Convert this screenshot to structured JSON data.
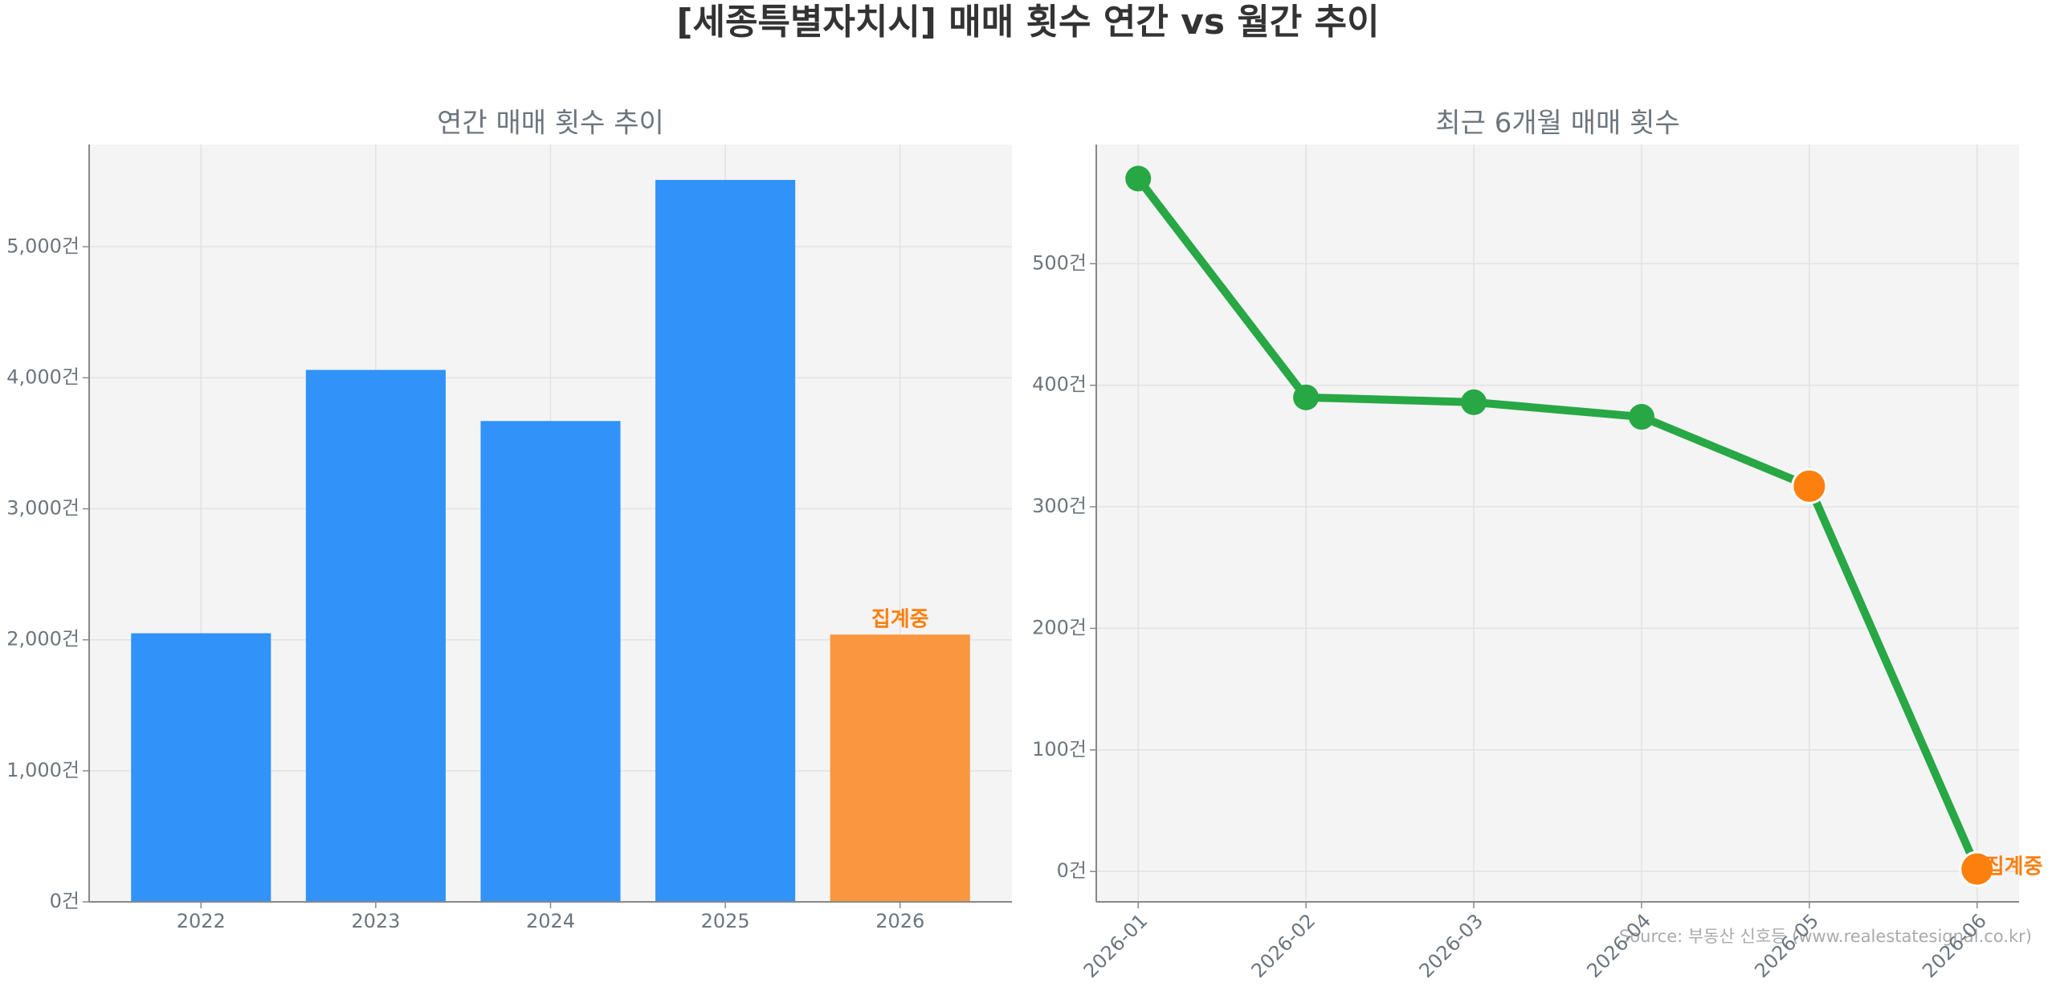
{
  "title": "[세종특별자치시] 매매 횟수 연간 vs 월간 추이",
  "source": "Source: 부동산 신호등 (www.realestatesignal.co.kr)",
  "chart_data": [
    {
      "type": "bar",
      "title": "연간 매매 횟수 추이",
      "categories": [
        "2022",
        "2023",
        "2024",
        "2025",
        "2026"
      ],
      "values": [
        2050,
        4060,
        3670,
        5510,
        2040
      ],
      "colors": [
        "#3192fa",
        "#3192fa",
        "#3192fa",
        "#3192fa",
        "#f9963f"
      ],
      "ylim": [
        0,
        5780
      ],
      "yticks": [
        {
          "value": 0,
          "label": "0건"
        },
        {
          "value": 1000,
          "label": "1,000건"
        },
        {
          "value": 2000,
          "label": "2,000건"
        },
        {
          "value": 3000,
          "label": "3,000건"
        },
        {
          "value": 4000,
          "label": "4,000건"
        },
        {
          "value": 5000,
          "label": "5,000건"
        }
      ],
      "grid": true,
      "annotations": [
        {
          "category": "2026",
          "text": "집계중"
        }
      ]
    },
    {
      "type": "line",
      "title": "최근 6개월 매매 횟수",
      "categories": [
        "2026-01",
        "2026-02",
        "2026-03",
        "2026-04",
        "2026-05",
        "2026-06"
      ],
      "series": [
        {
          "color": "#28a745",
          "values": [
            570,
            390,
            386,
            374,
            317,
            2
          ],
          "marker_colors": [
            "#28a745",
            "#28a745",
            "#28a745",
            "#28a745",
            "#fd7f0e",
            "#fd7f0e"
          ]
        }
      ],
      "ylim": [
        -25,
        598
      ],
      "yticks": [
        {
          "value": 0,
          "label": "0건"
        },
        {
          "value": 100,
          "label": "100건"
        },
        {
          "value": 200,
          "label": "200건"
        },
        {
          "value": 300,
          "label": "300건"
        },
        {
          "value": 400,
          "label": "400건"
        },
        {
          "value": 500,
          "label": "500건"
        }
      ],
      "grid": true,
      "annotations": [
        {
          "category": "2026-06",
          "text": "집계중"
        }
      ]
    }
  ]
}
